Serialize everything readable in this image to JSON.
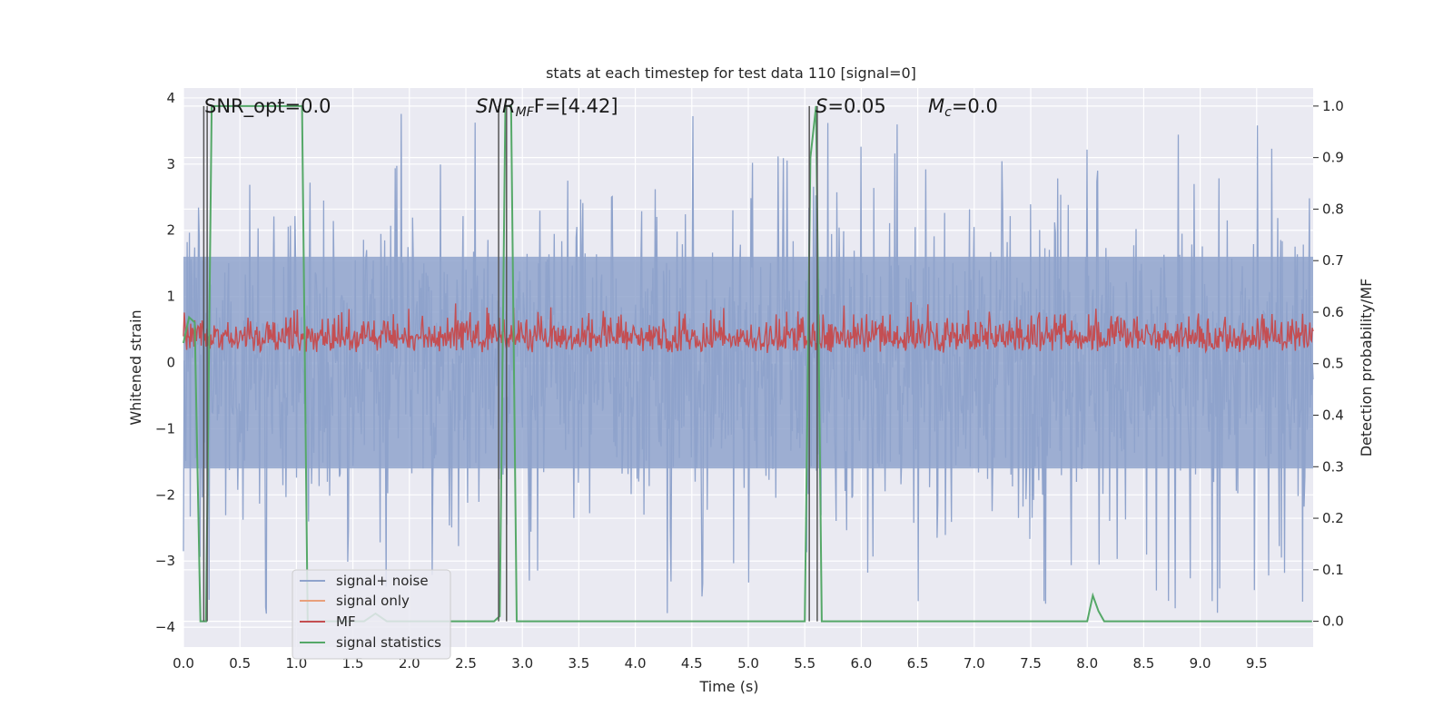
{
  "chart_data": {
    "type": "line",
    "title": "stats at each timestep for test data 110 [signal=0]",
    "xlabel": "Time (s)",
    "ylabel_left": "Whitened strain",
    "ylabel_right": "Detection probability/MF",
    "xlim": [
      0.0,
      10.0
    ],
    "ylim_left": [
      -4.3,
      4.15
    ],
    "ylim_right": [
      -0.05,
      1.035
    ],
    "x_ticks": [
      "0.0",
      "0.5",
      "1.0",
      "1.5",
      "2.0",
      "2.5",
      "3.0",
      "3.5",
      "4.0",
      "4.5",
      "5.0",
      "5.5",
      "6.0",
      "6.5",
      "7.0",
      "7.5",
      "8.0",
      "8.5",
      "9.0",
      "9.5"
    ],
    "y_ticks_left": [
      "−4",
      "−3",
      "−2",
      "−1",
      "0",
      "1",
      "2",
      "3",
      "4"
    ],
    "y_ticks_right": [
      "0.0",
      "0.1",
      "0.2",
      "0.3",
      "0.4",
      "0.5",
      "0.6",
      "0.7",
      "0.8",
      "0.9",
      "1.0"
    ],
    "grid": true,
    "legend_position": "lower-left",
    "annotations": {
      "snr_opt": "SNR_opt=0.0",
      "snr_mf_base": "SNR",
      "snr_mf_sub": "MF",
      "snr_mf_tail": "F=[4.42]",
      "s_label": "S",
      "s_value": "=0.05",
      "mc_base": "M",
      "mc_sub": "c",
      "mc_value": "=0.0"
    },
    "series": [
      {
        "name": "signal+ noise",
        "color": "#8fa3cc",
        "axis": "left",
        "description_values": {
          "band_low": -1.6,
          "band_high": 1.6,
          "peak_max": 3.9,
          "peak_min": -3.95
        }
      },
      {
        "name": "signal only",
        "color": "#e8a07c",
        "axis": "left",
        "values": []
      },
      {
        "name": "MF",
        "color": "#c44e52",
        "axis": "right",
        "description_values": {
          "base": 0.53,
          "range": [
            0.51,
            0.64
          ]
        }
      },
      {
        "name": "signal statistics",
        "color": "#55a868",
        "axis": "right",
        "x": [
          0.0,
          0.05,
          0.1,
          0.15,
          0.2,
          0.25,
          1.05,
          1.1,
          1.15,
          1.6,
          1.7,
          1.8,
          2.75,
          2.8,
          2.85,
          2.9,
          2.95,
          5.5,
          5.55,
          5.6,
          5.65,
          5.7,
          8.0,
          8.05,
          8.1,
          8.15,
          9.99
        ],
        "values": [
          0.54,
          0.59,
          0.58,
          0.0,
          0.0,
          1.0,
          1.0,
          0.0,
          0.0,
          0.0,
          0.015,
          0.0,
          0.0,
          0.01,
          1.0,
          1.0,
          0.0,
          0.0,
          0.9,
          1.0,
          0.0,
          0.0,
          0.0,
          0.05,
          0.02,
          0.0,
          0.0
        ]
      },
      {
        "name": "",
        "color": "#555555",
        "axis": "right",
        "kind": "vertical-markers",
        "x": [
          0.18,
          0.21,
          2.79,
          2.86,
          5.54,
          5.61
        ]
      }
    ]
  }
}
